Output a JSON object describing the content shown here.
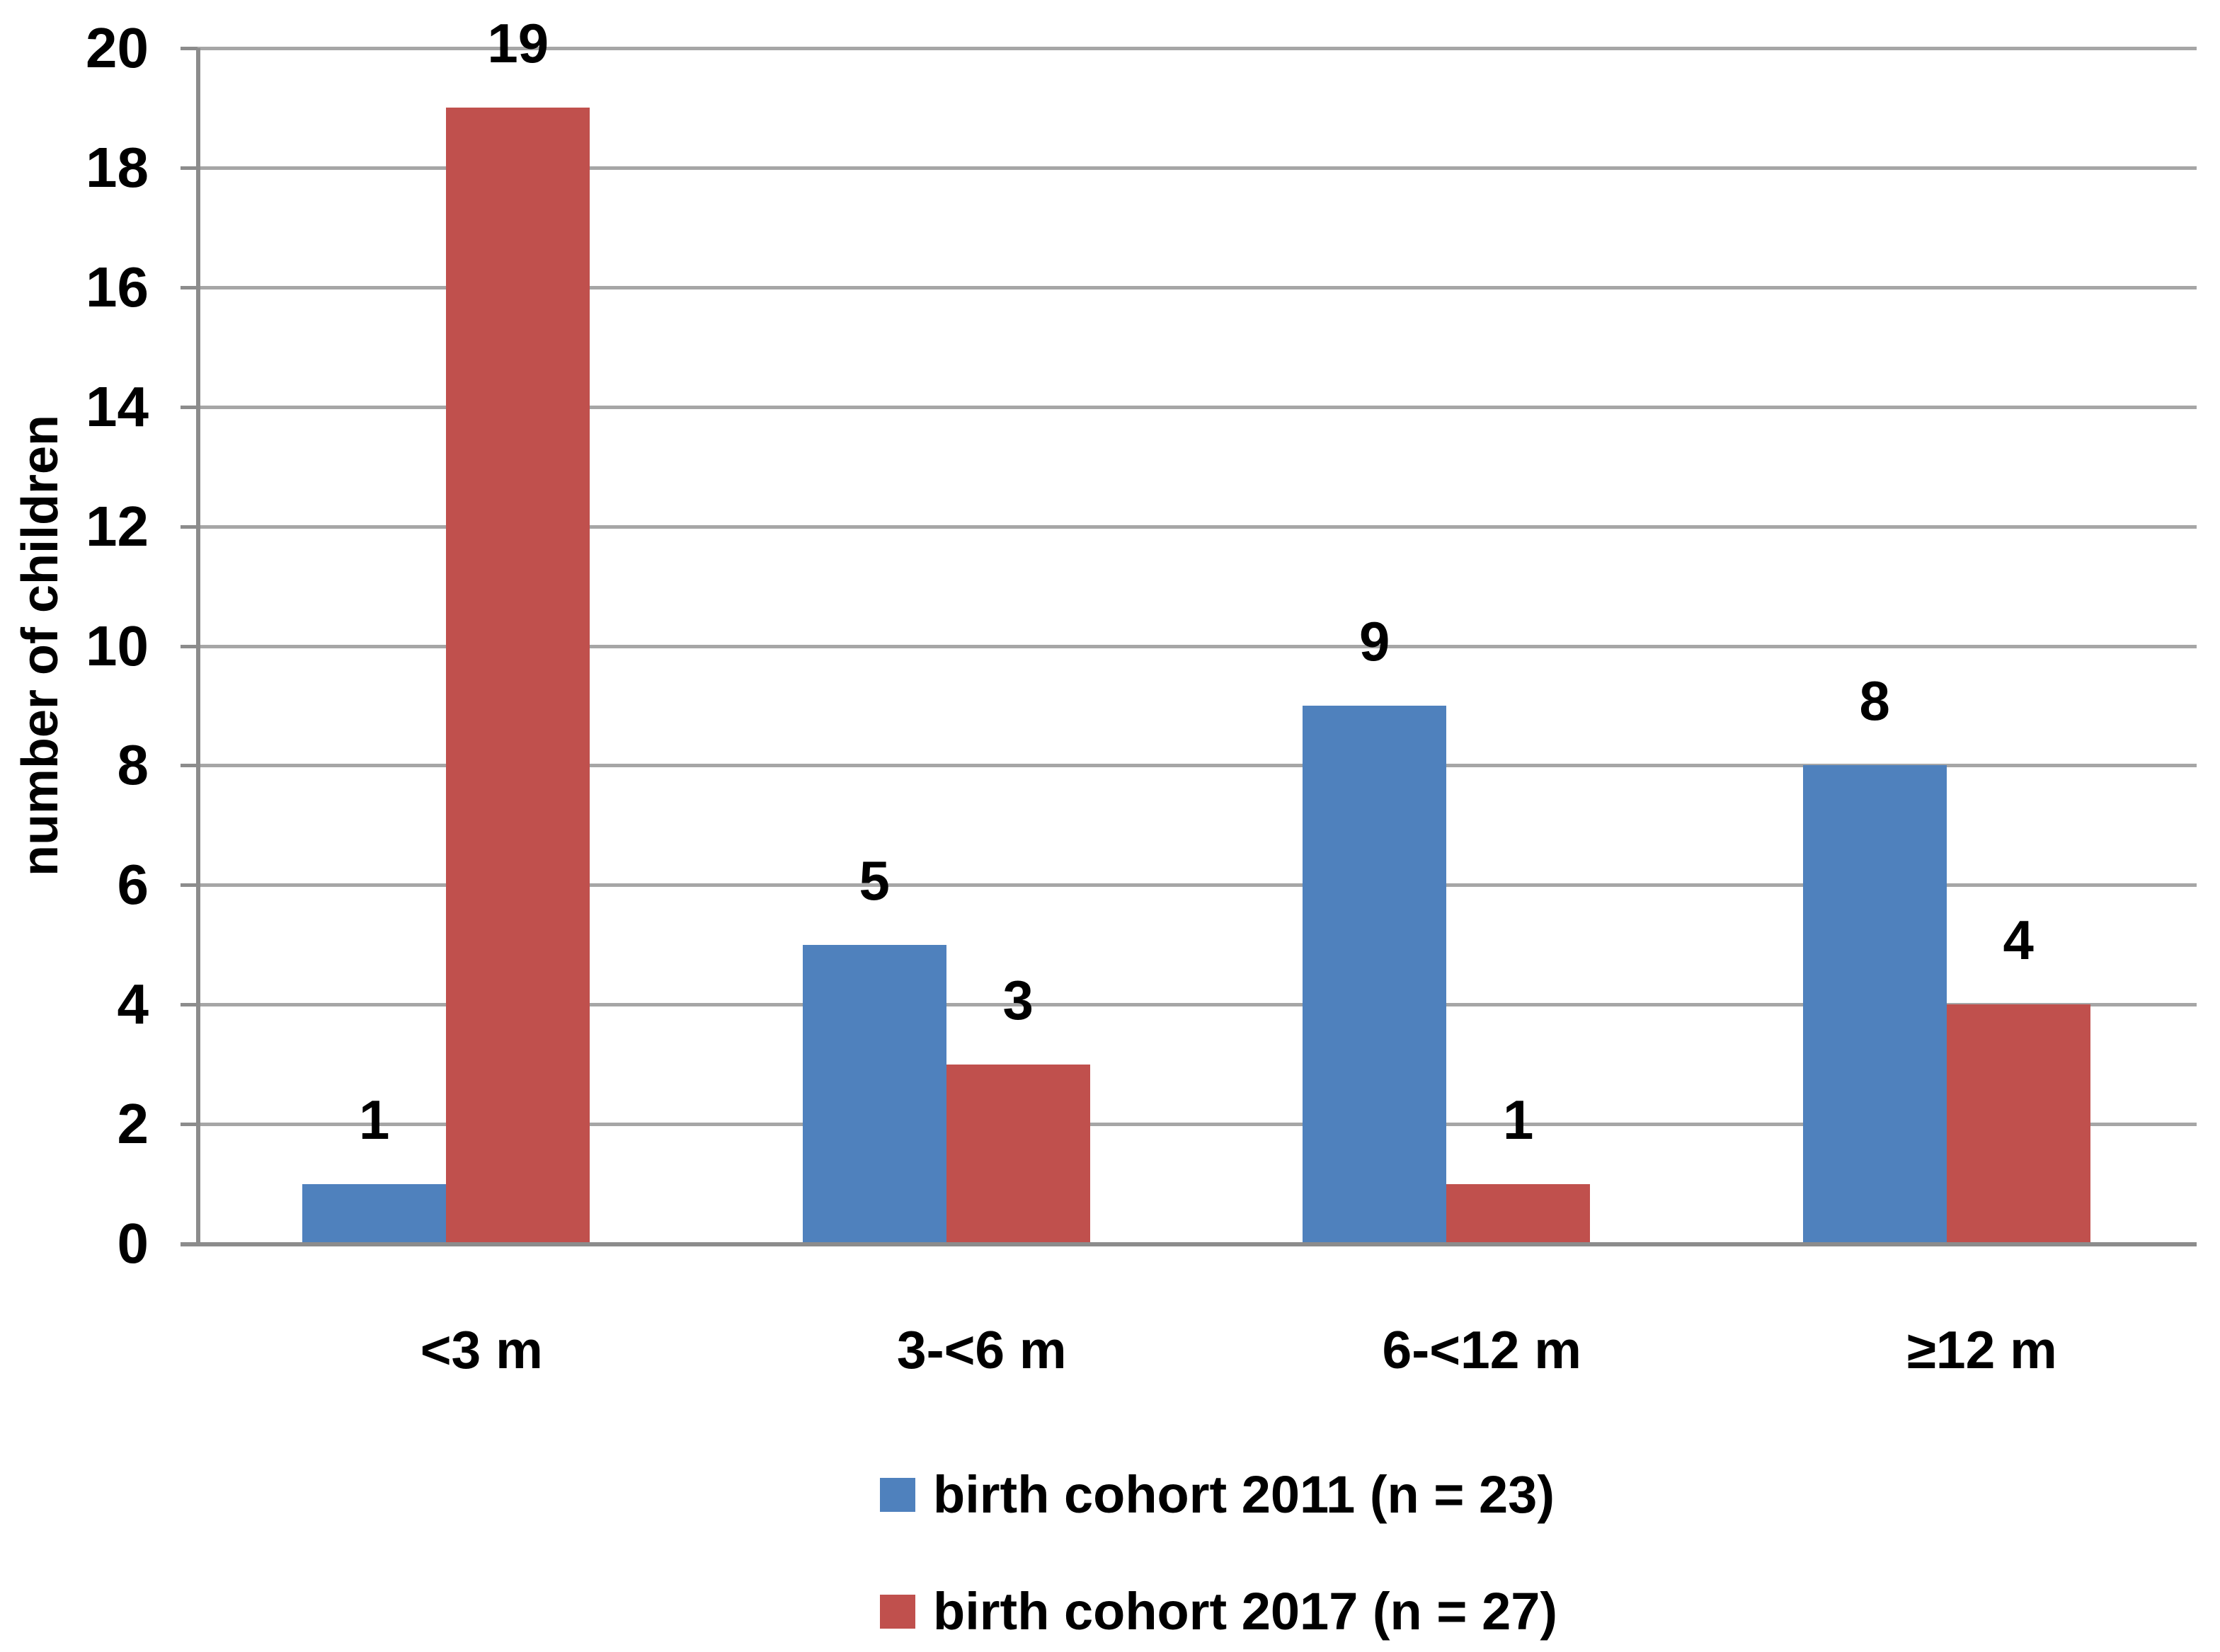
{
  "chart_data": {
    "type": "bar",
    "title": "",
    "categories": [
      "<3 m",
      "3-<6 m",
      "6-<12 m",
      "≥12 m"
    ],
    "series": [
      {
        "name": "birth cohort 2011 (n = 23)",
        "color": "#4F81BD",
        "values": [
          1,
          5,
          9,
          8
        ]
      },
      {
        "name": "birth cohort 2017 (n = 27)",
        "color": "#C0504D",
        "values": [
          19,
          3,
          1,
          4
        ]
      }
    ],
    "xlabel": "",
    "ylabel": "number of children",
    "ylim": [
      0,
      20
    ],
    "yticks": [
      0,
      2,
      4,
      6,
      8,
      10,
      12,
      14,
      16,
      18,
      20
    ],
    "grid": true,
    "data_labels": true,
    "legend_position": "bottom"
  },
  "colors": {
    "gridline": "#A6A6A6",
    "axis": "#8C8C8C",
    "text": "#000000",
    "background": "#FFFFFF"
  }
}
